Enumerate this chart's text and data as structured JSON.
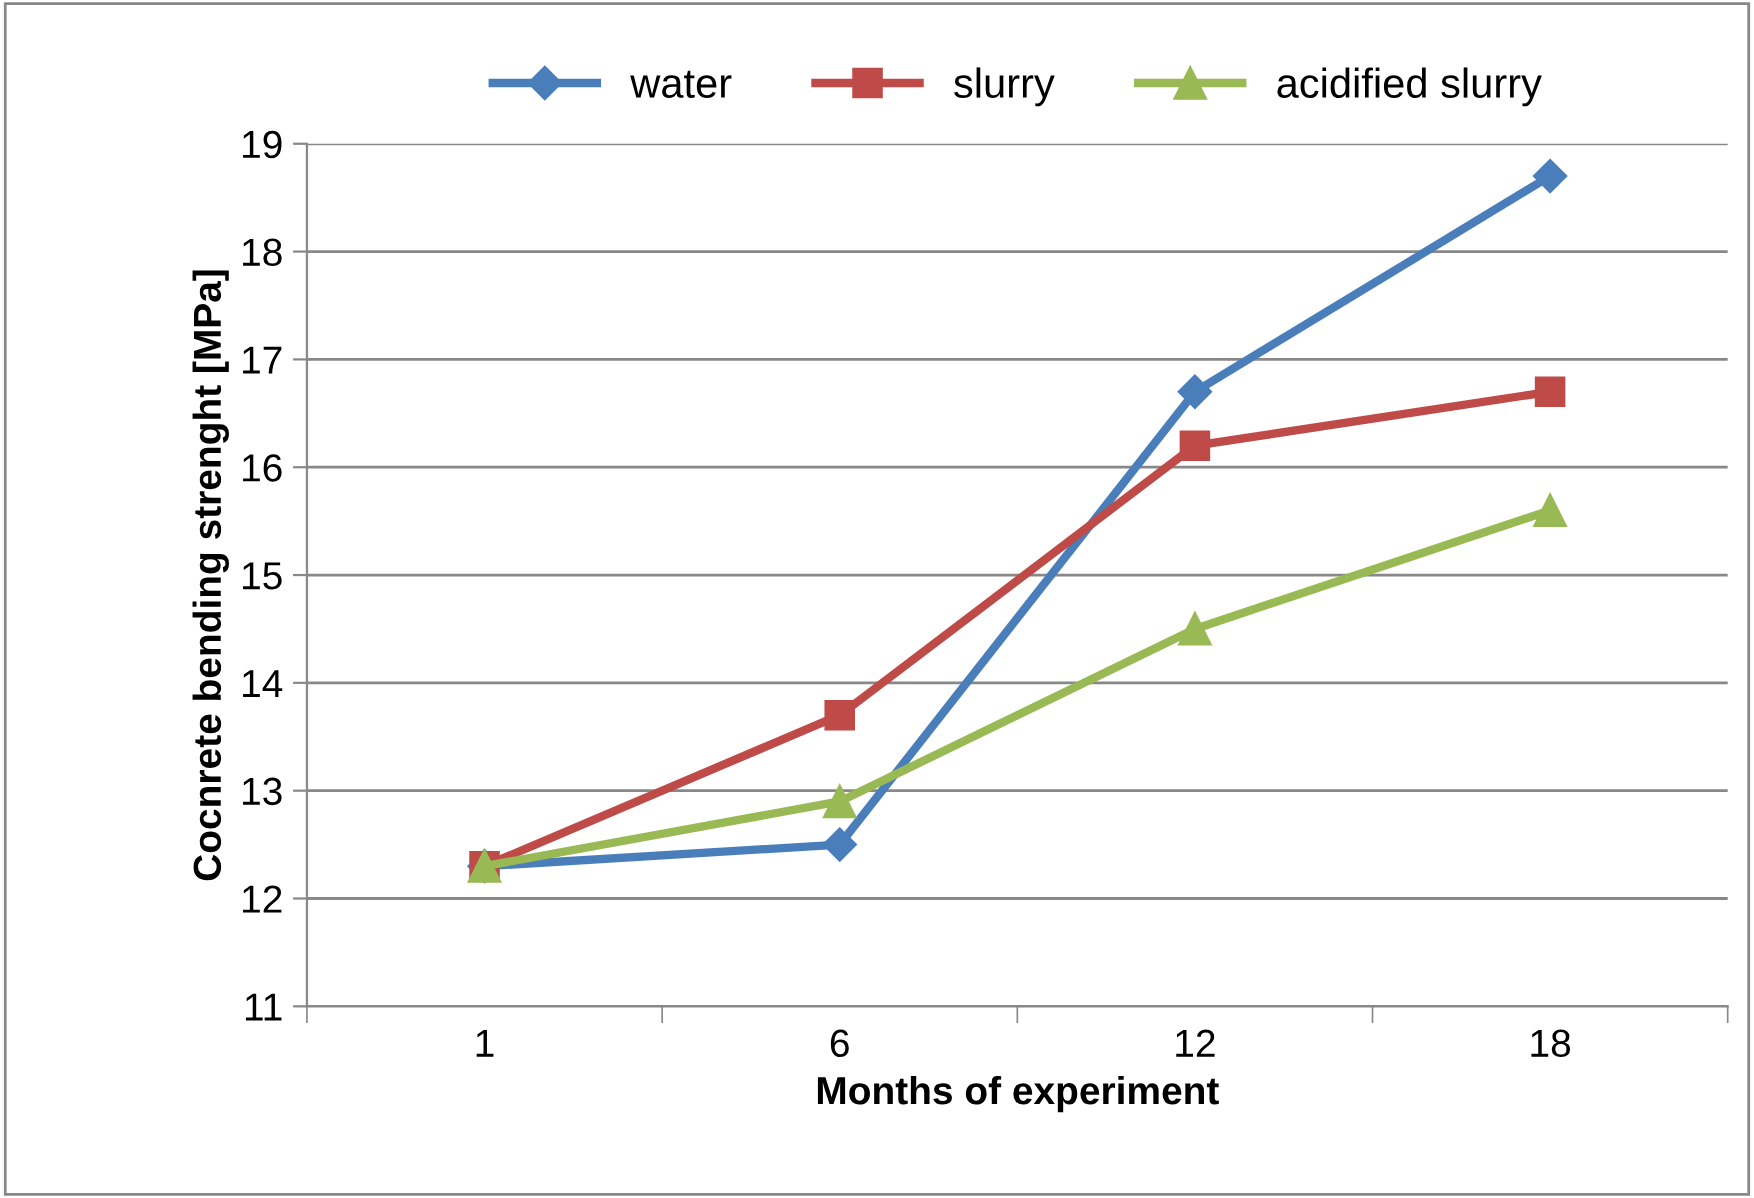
{
  "chart_data": {
    "type": "line",
    "xlabel": "Months of experiment",
    "ylabel": "Cocnrete bending strenght [MPa]",
    "categories": [
      "1",
      "6",
      "12",
      "18"
    ],
    "series": [
      {
        "name": "water",
        "color": "#4a7ebb",
        "marker": "diamond",
        "values": [
          12.3,
          12.5,
          16.7,
          18.7
        ]
      },
      {
        "name": "slurry",
        "color": "#be4b48",
        "marker": "square",
        "values": [
          12.3,
          13.7,
          16.2,
          16.7
        ]
      },
      {
        "name": "acidified slurry",
        "color": "#98b954",
        "marker": "triangle",
        "values": [
          12.3,
          12.9,
          14.5,
          15.6
        ]
      }
    ],
    "ylim": [
      11,
      19
    ],
    "yticks": [
      11,
      12,
      13,
      14,
      15,
      16,
      17,
      18,
      19
    ],
    "grid": "y",
    "legend": "top"
  }
}
